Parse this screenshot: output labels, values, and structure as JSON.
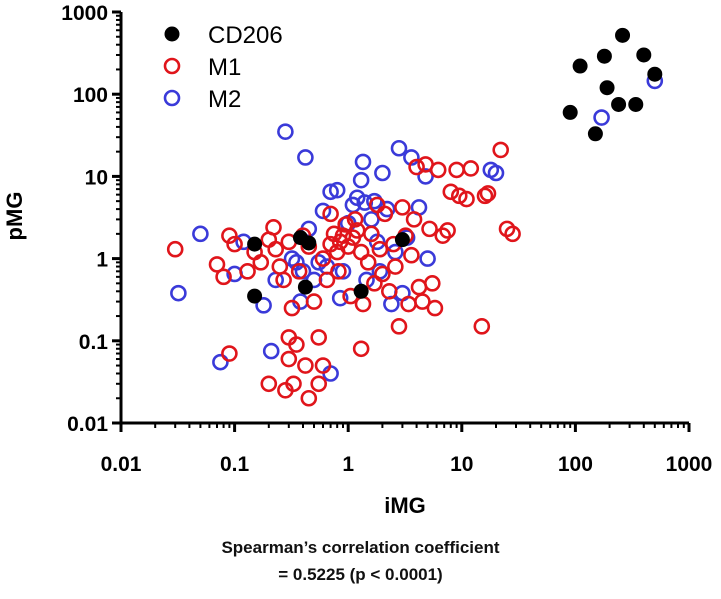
{
  "chart_data": {
    "type": "scatter",
    "title": "",
    "xlabel": "iMG",
    "ylabel": "pMG",
    "x_scale": "log",
    "y_scale": "log",
    "xlim": [
      0.01,
      1000
    ],
    "ylim": [
      0.01,
      1000
    ],
    "x_tick_labels": [
      "0.01",
      "0.1",
      "1",
      "10",
      "100",
      "1000"
    ],
    "y_tick_labels": [
      "0.01",
      "0.1",
      "1",
      "10",
      "100",
      "1000"
    ],
    "legend": {
      "placement": "top-left",
      "entries": [
        "CD206",
        "M1",
        "M2"
      ]
    },
    "series": [
      {
        "name": "CD206",
        "marker": "filled-circle",
        "color": "#000000",
        "points": [
          [
            0.15,
            1.5
          ],
          [
            0.38,
            1.8
          ],
          [
            0.45,
            1.55
          ],
          [
            0.42,
            0.45
          ],
          [
            0.15,
            0.35
          ],
          [
            1.3,
            0.4
          ],
          [
            3.0,
            1.7
          ],
          [
            90,
            60
          ],
          [
            110,
            220
          ],
          [
            150,
            33
          ],
          [
            180,
            290
          ],
          [
            190,
            120
          ],
          [
            240,
            75
          ],
          [
            260,
            520
          ],
          [
            340,
            75
          ],
          [
            400,
            300
          ],
          [
            500,
            175
          ]
        ]
      },
      {
        "name": "M1",
        "marker": "open-circle",
        "color": "#e0151b",
        "points": [
          [
            0.03,
            1.3
          ],
          [
            0.07,
            0.85
          ],
          [
            0.08,
            0.6
          ],
          [
            0.09,
            0.07
          ],
          [
            0.09,
            1.9
          ],
          [
            0.1,
            1.5
          ],
          [
            0.13,
            0.7
          ],
          [
            0.15,
            1.2
          ],
          [
            0.17,
            0.9
          ],
          [
            0.2,
            0.03
          ],
          [
            0.2,
            1.7
          ],
          [
            0.22,
            2.4
          ],
          [
            0.23,
            1.3
          ],
          [
            0.25,
            0.8
          ],
          [
            0.27,
            0.55
          ],
          [
            0.28,
            0.025
          ],
          [
            0.3,
            0.06
          ],
          [
            0.3,
            0.11
          ],
          [
            0.3,
            1.6
          ],
          [
            0.32,
            0.25
          ],
          [
            0.33,
            0.03
          ],
          [
            0.35,
            0.09
          ],
          [
            0.37,
            0.7
          ],
          [
            0.4,
            1.9
          ],
          [
            0.42,
            0.05
          ],
          [
            0.45,
            0.02
          ],
          [
            0.45,
            1.4
          ],
          [
            0.5,
            0.3
          ],
          [
            0.55,
            0.11
          ],
          [
            0.55,
            0.03
          ],
          [
            0.6,
            0.05
          ],
          [
            0.6,
            1.0
          ],
          [
            0.65,
            0.55
          ],
          [
            0.7,
            1.5
          ],
          [
            0.7,
            3.5
          ],
          [
            0.75,
            2.0
          ],
          [
            0.8,
            1.2
          ],
          [
            0.82,
            0.7
          ],
          [
            0.85,
            1.6
          ],
          [
            0.9,
            1.9
          ],
          [
            0.95,
            2.6
          ],
          [
            1.0,
            1.4
          ],
          [
            1.05,
            0.35
          ],
          [
            1.1,
            1.8
          ],
          [
            1.15,
            3.0
          ],
          [
            1.2,
            2.2
          ],
          [
            1.3,
            0.08
          ],
          [
            1.3,
            1.2
          ],
          [
            1.35,
            0.28
          ],
          [
            1.5,
            0.9
          ],
          [
            1.6,
            2.0
          ],
          [
            1.7,
            0.5
          ],
          [
            1.8,
            4.5
          ],
          [
            1.9,
            1.3
          ],
          [
            2.0,
            0.65
          ],
          [
            2.1,
            3.5
          ],
          [
            2.3,
            0.4
          ],
          [
            2.5,
            1.5
          ],
          [
            2.6,
            0.8
          ],
          [
            2.8,
            0.15
          ],
          [
            3.0,
            4.2
          ],
          [
            3.2,
            1.9
          ],
          [
            3.4,
            0.28
          ],
          [
            3.6,
            1.1
          ],
          [
            3.8,
            3.0
          ],
          [
            4.0,
            13
          ],
          [
            4.2,
            0.45
          ],
          [
            4.5,
            0.3
          ],
          [
            4.8,
            14
          ],
          [
            5.2,
            2.3
          ],
          [
            5.5,
            0.5
          ],
          [
            5.8,
            0.25
          ],
          [
            6.2,
            12
          ],
          [
            6.8,
            1.9
          ],
          [
            7.5,
            2.2
          ],
          [
            8.0,
            6.5
          ],
          [
            9.0,
            12
          ],
          [
            9.5,
            5.8
          ],
          [
            11,
            5.3
          ],
          [
            12,
            12.5
          ],
          [
            15,
            0.15
          ],
          [
            16,
            5.8
          ],
          [
            17,
            6.2
          ],
          [
            22,
            21
          ],
          [
            25,
            2.3
          ],
          [
            28,
            2.0
          ]
        ]
      },
      {
        "name": "M2",
        "marker": "open-circle",
        "color": "#3a3ad9",
        "points": [
          [
            0.032,
            0.38
          ],
          [
            0.05,
            2.0
          ],
          [
            0.075,
            0.055
          ],
          [
            0.1,
            0.65
          ],
          [
            0.12,
            1.6
          ],
          [
            0.18,
            0.27
          ],
          [
            0.21,
            0.075
          ],
          [
            0.23,
            0.55
          ],
          [
            0.28,
            35
          ],
          [
            0.32,
            1.0
          ],
          [
            0.35,
            0.9
          ],
          [
            0.38,
            0.3
          ],
          [
            0.4,
            0.7
          ],
          [
            0.42,
            17
          ],
          [
            0.45,
            2.3
          ],
          [
            0.5,
            0.55
          ],
          [
            0.55,
            0.9
          ],
          [
            0.6,
            3.8
          ],
          [
            0.65,
            0.8
          ],
          [
            0.7,
            0.04
          ],
          [
            0.7,
            6.5
          ],
          [
            0.8,
            6.8
          ],
          [
            0.85,
            0.33
          ],
          [
            0.9,
            0.7
          ],
          [
            1.0,
            2.7
          ],
          [
            1.1,
            4.5
          ],
          [
            1.2,
            5.5
          ],
          [
            1.3,
            9.0
          ],
          [
            1.35,
            15
          ],
          [
            1.4,
            4.8
          ],
          [
            1.45,
            0.55
          ],
          [
            1.6,
            3.0
          ],
          [
            1.7,
            5.0
          ],
          [
            1.8,
            1.6
          ],
          [
            1.9,
            0.7
          ],
          [
            2.0,
            11
          ],
          [
            2.2,
            4.0
          ],
          [
            2.4,
            0.28
          ],
          [
            2.6,
            1.2
          ],
          [
            2.8,
            22
          ],
          [
            3.0,
            0.38
          ],
          [
            3.3,
            1.8
          ],
          [
            3.6,
            17
          ],
          [
            4.2,
            4.2
          ],
          [
            4.8,
            10
          ],
          [
            5.0,
            1.0
          ],
          [
            18,
            12
          ],
          [
            20,
            11
          ],
          [
            170,
            52
          ],
          [
            500,
            145
          ]
        ]
      }
    ]
  },
  "caption": {
    "line1": "Spearman’s correlation coefficient",
    "line2": "= 0.5225 (p < 0.0001)"
  }
}
